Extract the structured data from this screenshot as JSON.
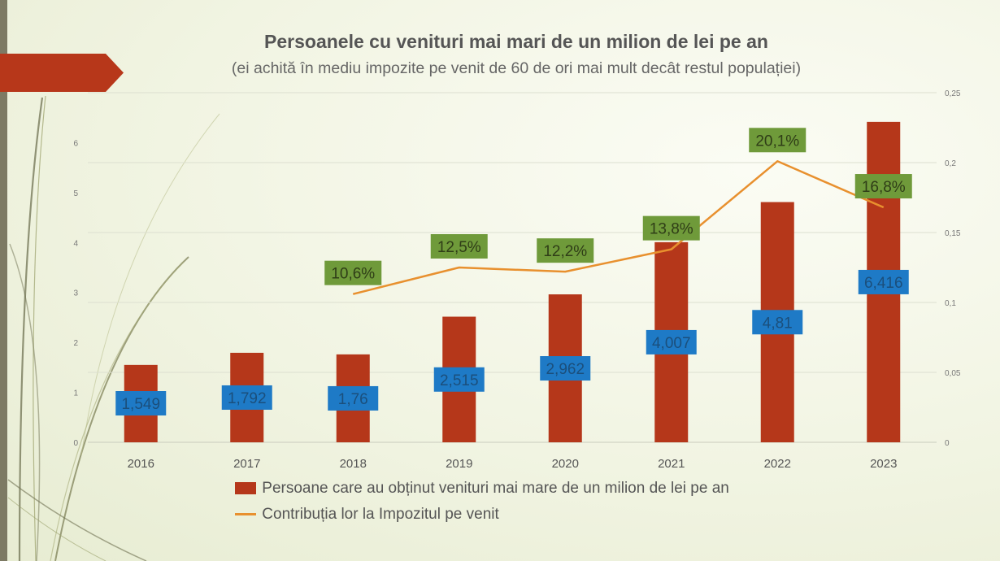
{
  "title": "Persoanele cu venituri mai mari de un milion de lei pe an",
  "subtitle": "(ei achită în mediu impozite pe venit de 60 de ori mai mult decât restul populației)",
  "colors": {
    "bar": "#b5371a",
    "line": "#e8902e",
    "bar_label_bg": "#1e7ac6",
    "line_label_bg": "#6f9a3a",
    "ribbon": "#b7371a"
  },
  "chart_data": {
    "type": "bar",
    "categories": [
      "2016",
      "2017",
      "2018",
      "2019",
      "2020",
      "2021",
      "2022",
      "2023"
    ],
    "series": [
      {
        "name": "Persoane care au obținut venituri mai mare de un milion de lei pe an",
        "type": "bar",
        "axis": "left",
        "values": [
          1.549,
          1.792,
          1.76,
          2.515,
          2.962,
          4.007,
          4.81,
          6.416
        ],
        "labels": [
          "1,549",
          "1,792",
          "1,76",
          "2,515",
          "2,962",
          "4,007",
          "4,81",
          "6,416"
        ]
      },
      {
        "name": "Contribuția lor la Impozitul pe venit",
        "type": "line",
        "axis": "right",
        "values": [
          null,
          null,
          0.106,
          0.125,
          0.122,
          0.138,
          0.201,
          0.168
        ],
        "labels": [
          null,
          null,
          "10,6%",
          "12,5%",
          "12,2%",
          "13,8%",
          "20,1%",
          "16,8%"
        ]
      }
    ],
    "left_axis": {
      "ylim": [
        0,
        7
      ],
      "ticks": [
        "0",
        "1",
        "2",
        "3",
        "4",
        "5",
        "6"
      ]
    },
    "right_axis": {
      "ylim": [
        0,
        0.25
      ],
      "ticks": [
        "0",
        "0,05",
        "0,1",
        "0,15",
        "0,2",
        "0,25"
      ]
    },
    "grid": true,
    "legend_position": "bottom"
  }
}
